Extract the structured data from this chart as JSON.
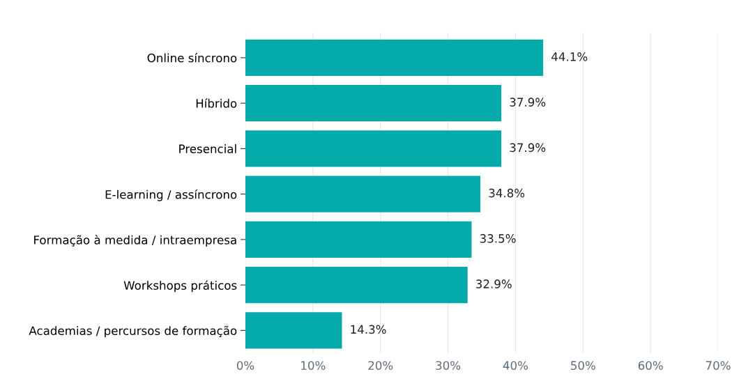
{
  "chart_data": {
    "type": "bar",
    "orientation": "horizontal",
    "categories": [
      "Online síncrono",
      "Híbrido",
      "Presencial",
      "E-learning / assíncrono",
      "Formação à medida / intraempresa",
      "Workshops práticos",
      "Academias / percursos de formação"
    ],
    "values": [
      44.1,
      37.9,
      37.9,
      34.8,
      33.5,
      32.9,
      14.3
    ],
    "value_labels": [
      "44.1%",
      "37.9%",
      "37.9%",
      "34.8%",
      "33.5%",
      "32.9%",
      "14.3%"
    ],
    "color": "#03aaa9",
    "xlim": [
      0,
      70
    ],
    "xticks": [
      {
        "value": 0,
        "label": "0%"
      },
      {
        "value": 10,
        "label": "10%"
      },
      {
        "value": 20,
        "label": "20%"
      },
      {
        "value": 30,
        "label": "30%"
      },
      {
        "value": 40,
        "label": "40%"
      },
      {
        "value": 50,
        "label": "50%"
      },
      {
        "value": 60,
        "label": "60%"
      },
      {
        "value": 70,
        "label": "70%"
      }
    ],
    "grid": "x"
  }
}
